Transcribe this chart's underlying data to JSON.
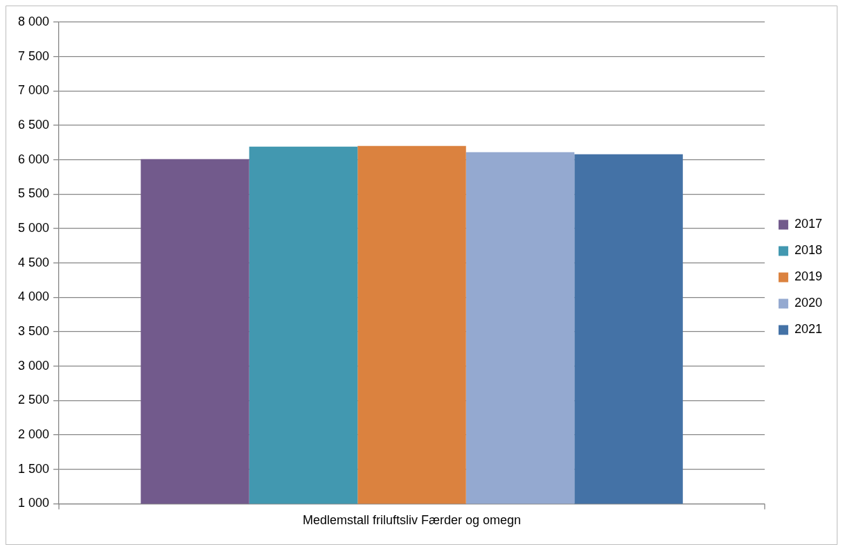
{
  "chart_data": {
    "type": "bar",
    "categories": [
      "Medlemstall friluftsliv Færder og omegn"
    ],
    "series": [
      {
        "name": "2017",
        "color": "#725a8c",
        "values": [
          6010
        ]
      },
      {
        "name": "2018",
        "color": "#4298b0",
        "values": [
          6190
        ]
      },
      {
        "name": "2019",
        "color": "#db823f",
        "values": [
          6200
        ]
      },
      {
        "name": "2020",
        "color": "#94a9d0",
        "values": [
          6110
        ]
      },
      {
        "name": "2021",
        "color": "#4472a6",
        "values": [
          6080
        ]
      }
    ],
    "ylim": [
      1000,
      8000
    ],
    "yticks": [
      {
        "value": 1000,
        "label": "1 000"
      },
      {
        "value": 1500,
        "label": "1 500"
      },
      {
        "value": 2000,
        "label": "2 000"
      },
      {
        "value": 2500,
        "label": "2 500"
      },
      {
        "value": 3000,
        "label": "3 000"
      },
      {
        "value": 3500,
        "label": "3 500"
      },
      {
        "value": 4000,
        "label": "4 000"
      },
      {
        "value": 4500,
        "label": "4 500"
      },
      {
        "value": 5000,
        "label": "5 000"
      },
      {
        "value": 5500,
        "label": "5 500"
      },
      {
        "value": 6000,
        "label": "6 000"
      },
      {
        "value": 6500,
        "label": "6 500"
      },
      {
        "value": 7000,
        "label": "7 000"
      },
      {
        "value": 7500,
        "label": "7 500"
      },
      {
        "value": 8000,
        "label": "8 000"
      }
    ],
    "grid": "y",
    "legend": "right"
  }
}
